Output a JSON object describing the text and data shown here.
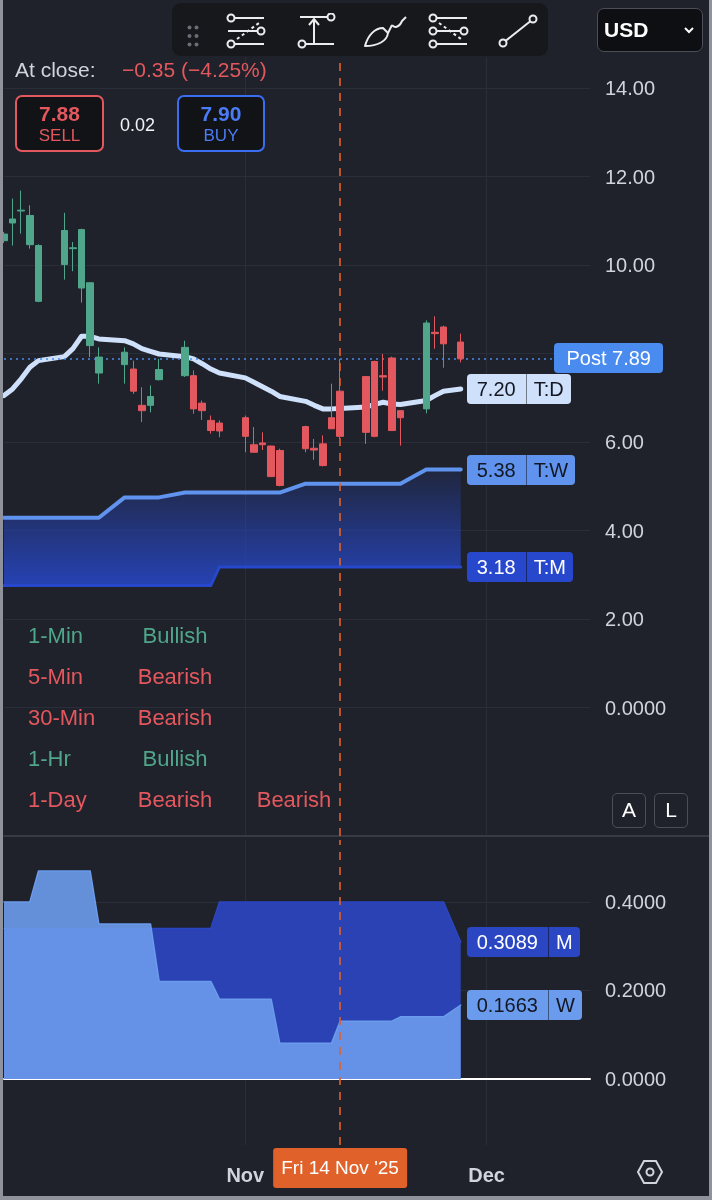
{
  "chart_data": [
    {
      "type": "candlestick",
      "x": [
        "2025-10-06",
        "2025-10-07",
        "2025-10-08",
        "2025-10-09",
        "2025-10-10",
        "2025-10-13",
        "2025-10-14",
        "2025-10-15",
        "2025-10-16",
        "2025-10-17",
        "2025-10-20",
        "2025-10-21",
        "2025-10-22",
        "2025-10-23",
        "2025-10-24",
        "2025-10-27",
        "2025-10-28",
        "2025-10-29",
        "2025-10-30",
        "2025-10-31",
        "2025-11-03",
        "2025-11-04",
        "2025-11-05",
        "2025-11-06",
        "2025-11-07",
        "2025-11-10",
        "2025-11-11",
        "2025-11-12",
        "2025-11-13",
        "2025-11-14",
        "2025-11-17",
        "2025-11-18",
        "2025-11-19",
        "2025-11-20",
        "2025-11-21",
        "2025-11-24",
        "2025-11-25",
        "2025-11-26",
        "2025-11-28"
      ],
      "xlim": [
        "2025-10-06",
        "2025-12-13"
      ],
      "xticks": [
        {
          "value": "2025-11-03",
          "label": null
        },
        {
          "value": "2025-12-01",
          "label": null
        }
      ],
      "tick_labels": "y",
      "ylim": [
        -2.9,
        14.7
      ],
      "yticks": [
        {
          "value": 0,
          "label": "0.0000"
        },
        {
          "value": 2,
          "label": "2.00"
        },
        {
          "value": 4,
          "label": "4.00"
        },
        {
          "value": 6,
          "label": "6.00"
        },
        {
          "value": 8,
          "label": null
        },
        {
          "value": 10,
          "label": "10.00"
        },
        {
          "value": 12,
          "label": "12.00"
        },
        {
          "value": 14,
          "label": "14.00"
        }
      ],
      "ohlc": [
        [
          10.55,
          10.75,
          10.5,
          10.7
        ],
        [
          10.95,
          11.5,
          10.44,
          11.04
        ],
        [
          11.22,
          11.68,
          10.71,
          11.24
        ],
        [
          10.46,
          11.35,
          10.37,
          11.12
        ],
        [
          9.18,
          10.47,
          9.16,
          10.44
        ],
        [
          10.01,
          11.18,
          9.67,
          10.78
        ],
        [
          10.37,
          10.52,
          9.86,
          10.39
        ],
        [
          9.48,
          10.82,
          9.15,
          10.8
        ],
        [
          8.18,
          9.6,
          7.92,
          9.6
        ],
        [
          7.56,
          8.14,
          7.32,
          7.92
        ],
        [
          7.75,
          8.14,
          7.32,
          8.03
        ],
        [
          7.65,
          7.84,
          7.09,
          7.15
        ],
        [
          6.83,
          7.24,
          6.45,
          6.71
        ],
        [
          6.83,
          7.28,
          6.67,
          7.03
        ],
        [
          7.41,
          7.88,
          7.39,
          7.64
        ],
        [
          7.5,
          8.29,
          7.47,
          8.14
        ],
        [
          7.5,
          7.62,
          6.64,
          6.75
        ],
        [
          6.88,
          6.94,
          6.5,
          6.71
        ],
        [
          6.49,
          6.6,
          6.19,
          6.26
        ],
        [
          6.43,
          6.49,
          6.11,
          6.25
        ],
        [
          6.55,
          6.6,
          5.77,
          6.13
        ],
        [
          5.94,
          6.34,
          5.77,
          5.77
        ],
        [
          5.98,
          6.22,
          5.82,
          5.94
        ],
        [
          5.91,
          5.92,
          5.21,
          5.22
        ],
        [
          5.81,
          5.85,
          5.0,
          5.02
        ],
        [
          6.35,
          6.37,
          5.77,
          5.85
        ],
        [
          5.86,
          6.07,
          5.6,
          5.82
        ],
        [
          5.96,
          6.15,
          5.45,
          5.47
        ],
        [
          6.55,
          7.32,
          6.3,
          6.3
        ],
        [
          7.15,
          7.88,
          6.07,
          6.13
        ],
        [
          7.48,
          7.48,
          5.96,
          6.22
        ],
        [
          7.82,
          7.84,
          6.11,
          6.13
        ],
        [
          7.5,
          7.99,
          7.16,
          7.47
        ],
        [
          7.9,
          7.93,
          6.25,
          6.26
        ],
        [
          6.71,
          6.71,
          5.92,
          6.55
        ],
        [
          6.75,
          8.75,
          6.65,
          8.69
        ],
        [
          8.48,
          8.84,
          8.11,
          8.45
        ],
        [
          8.6,
          8.63,
          7.68,
          8.22
        ],
        [
          8.26,
          8.45,
          7.8,
          7.88
        ]
      ],
      "colors": [
        "#4fa68a",
        "#4fa68a",
        "#4fa68a",
        "#4fa68a",
        "#4fa68a",
        "#4fa68a",
        "#4fa68a",
        "#4fa68a",
        "#4fa68a",
        "#4fa68a",
        "#4fa68a",
        "#e3575e",
        "#e3575e",
        "#4fa68a",
        "#4fa68a",
        "#4fa68a",
        "#e3575e",
        "#e3575e",
        "#e3575e",
        "#e3575e",
        "#e3575e",
        "#e3575e",
        "#e3575e",
        "#e3575e",
        "#e3575e",
        "#e3575e",
        "#e3575e",
        "#e3575e",
        "#e3575e",
        "#e3575e",
        "#e3575e",
        "#e3575e",
        "#e3575e",
        "#e3575e",
        "#e3575e",
        "#4fa68a",
        "#e3575e",
        "#e3575e",
        "#e3575e"
      ],
      "series": [
        {
          "name": "T:D",
          "type": "line",
          "color": "#cfe0fb",
          "values": [
            7.05,
            7.2,
            7.43,
            7.69,
            7.84,
            7.93,
            8.11,
            8.39,
            8.39,
            8.33,
            8.29,
            8.22,
            8.11,
            8.05,
            7.99,
            7.93,
            7.88,
            7.77,
            7.65,
            7.56,
            7.45,
            7.35,
            7.25,
            7.15,
            7.03,
            6.92,
            6.83,
            6.75,
            6.75,
            6.76,
            6.79,
            6.85,
            6.9,
            6.86,
            6.85,
            6.94,
            7.05,
            7.15,
            7.2
          ],
          "value_labels": [
            null,
            null,
            null,
            null,
            null,
            null,
            null,
            null,
            null,
            null,
            null,
            null,
            null,
            null,
            null,
            null,
            null,
            null,
            null,
            null,
            null,
            null,
            null,
            null,
            null,
            null,
            null,
            null,
            null,
            null,
            null,
            null,
            null,
            null,
            null,
            null,
            null,
            null,
            "7.20"
          ]
        },
        {
          "name": "T:W",
          "type": "line",
          "color": "#5f93ee",
          "values": [
            4.29,
            4.29,
            4.29,
            4.29,
            4.29,
            4.29,
            4.29,
            4.29,
            4.29,
            4.29,
            4.75,
            4.75,
            4.75,
            4.75,
            4.75,
            4.86,
            4.86,
            4.86,
            4.86,
            4.86,
            4.86,
            4.86,
            4.86,
            4.86,
            4.86,
            5.06,
            5.06,
            5.06,
            5.06,
            5.06,
            5.06,
            5.06,
            5.06,
            5.06,
            5.06,
            5.38,
            5.38,
            5.38,
            5.38
          ],
          "value_labels": [
            null,
            null,
            null,
            null,
            null,
            null,
            null,
            null,
            null,
            null,
            null,
            null,
            null,
            null,
            null,
            null,
            null,
            null,
            null,
            null,
            null,
            null,
            null,
            null,
            null,
            null,
            null,
            null,
            null,
            null,
            null,
            null,
            null,
            null,
            null,
            null,
            null,
            null,
            "5.38"
          ]
        },
        {
          "name": "T:M",
          "type": "line",
          "color": "#2748cc",
          "values": [
            2.76,
            2.76,
            2.76,
            2.76,
            2.76,
            2.76,
            2.76,
            2.76,
            2.76,
            2.76,
            2.76,
            2.76,
            2.76,
            2.76,
            2.76,
            2.76,
            2.76,
            2.76,
            2.76,
            3.18,
            3.18,
            3.18,
            3.18,
            3.18,
            3.18,
            3.18,
            3.18,
            3.18,
            3.18,
            3.18,
            3.18,
            3.18,
            3.18,
            3.18,
            3.18,
            3.18,
            3.18,
            3.18,
            3.18
          ],
          "lower": [
            2.76,
            2.76,
            2.76,
            2.76,
            2.76,
            2.76,
            2.76,
            2.76,
            2.76,
            2.76,
            2.76,
            2.76,
            2.76,
            2.76,
            2.76,
            2.76,
            2.76,
            2.76,
            2.76,
            3.18,
            3.18,
            3.18,
            3.18,
            3.18,
            3.18,
            3.18,
            3.18,
            3.18,
            3.18,
            3.18,
            3.18,
            3.18,
            3.18,
            3.18,
            3.18,
            3.18,
            3.18,
            3.18,
            3.18
          ],
          "upper": [
            4.29,
            4.29,
            4.29,
            4.29,
            4.29,
            4.29,
            4.29,
            4.29,
            4.29,
            4.29,
            4.75,
            4.75,
            4.75,
            4.75,
            4.75,
            4.86,
            4.86,
            4.86,
            4.86,
            4.86,
            4.86,
            4.86,
            4.86,
            4.86,
            4.86,
            5.06,
            5.06,
            5.06,
            5.06,
            5.06,
            5.06,
            5.06,
            5.06,
            5.06,
            5.06,
            5.38,
            5.38,
            5.38,
            5.38
          ],
          "value_labels": [
            null,
            null,
            null,
            null,
            null,
            null,
            null,
            null,
            null,
            null,
            null,
            null,
            null,
            null,
            null,
            null,
            null,
            null,
            null,
            null,
            null,
            null,
            null,
            null,
            null,
            null,
            null,
            null,
            null,
            null,
            null,
            null,
            null,
            null,
            null,
            null,
            null,
            null,
            "3.18"
          ]
        }
      ],
      "ref_lines": [
        {
          "axis": "y",
          "value": 7.89,
          "label": "Post 7.89",
          "color": "#4a8bf0",
          "line_style": "dotted"
        },
        {
          "axis": "x",
          "value": "2025-11-14",
          "color": "#e0622a",
          "line_style": "dashed"
        }
      ],
      "grid": true,
      "legend": "right",
      "marker": "none",
      "annotations": [
        "At close:",
        "−0.35 (−4.25%)",
        "7.88",
        "SELL",
        "0.02",
        "7.90",
        "BUY",
        "USD",
        "1-Min",
        "Bullish",
        "5-Min",
        "Bearish",
        "30-Min",
        "Bearish",
        "1-Hr",
        "Bullish",
        "1-Day",
        "Bearish",
        "Bearish",
        "A",
        "L"
      ]
    },
    {
      "type": "area",
      "x": [
        "2025-10-06",
        "2025-10-07",
        "2025-10-08",
        "2025-10-09",
        "2025-10-10",
        "2025-10-13",
        "2025-10-14",
        "2025-10-15",
        "2025-10-16",
        "2025-10-17",
        "2025-10-20",
        "2025-10-21",
        "2025-10-22",
        "2025-10-23",
        "2025-10-24",
        "2025-10-27",
        "2025-10-28",
        "2025-10-29",
        "2025-10-30",
        "2025-10-31",
        "2025-11-03",
        "2025-11-04",
        "2025-11-05",
        "2025-11-06",
        "2025-11-07",
        "2025-11-10",
        "2025-11-11",
        "2025-11-12",
        "2025-11-13",
        "2025-11-14",
        "2025-11-17",
        "2025-11-18",
        "2025-11-19",
        "2025-11-20",
        "2025-11-21",
        "2025-11-24",
        "2025-11-25",
        "2025-11-26",
        "2025-11-28"
      ],
      "xlim": [
        "2025-10-06",
        "2025-12-13"
      ],
      "xticks": [
        {
          "value": "2025-11-03",
          "label": "Nov"
        },
        {
          "value": "2025-12-01",
          "label": "Dec"
        }
      ],
      "ylim": [
        -0.15,
        0.54
      ],
      "yticks": [
        {
          "value": 0,
          "label": "0.0000"
        },
        {
          "value": 0.2,
          "label": "0.2000"
        },
        {
          "value": 0.4,
          "label": "0.4000"
        }
      ],
      "series": [
        {
          "name": "M",
          "color": "#2b46c2",
          "values": [
            0.34,
            0.34,
            0.34,
            0.34,
            0.34,
            0.34,
            0.34,
            0.34,
            0.34,
            0.34,
            0.34,
            0.34,
            0.34,
            0.34,
            0.34,
            0.34,
            0.34,
            0.34,
            0.34,
            0.4,
            0.4,
            0.4,
            0.4,
            0.4,
            0.4,
            0.4,
            0.4,
            0.4,
            0.4,
            0.4,
            0.4,
            0.4,
            0.4,
            0.4,
            0.4,
            0.4,
            0.4,
            0.4,
            0.3089
          ],
          "value_labels": [
            null,
            null,
            null,
            null,
            null,
            null,
            null,
            null,
            null,
            null,
            null,
            null,
            null,
            null,
            null,
            null,
            null,
            null,
            null,
            null,
            null,
            null,
            null,
            null,
            null,
            null,
            null,
            null,
            null,
            null,
            null,
            null,
            null,
            null,
            null,
            null,
            null,
            null,
            "0.3089"
          ]
        },
        {
          "name": "W",
          "color": "#6b9bec",
          "values": [
            0.4,
            0.4,
            0.4,
            0.4,
            0.47,
            0.47,
            0.47,
            0.47,
            0.47,
            0.35,
            0.35,
            0.35,
            0.35,
            0.35,
            0.22,
            0.22,
            0.22,
            0.22,
            0.22,
            0.18,
            0.18,
            0.18,
            0.18,
            0.18,
            0.08,
            0.08,
            0.08,
            0.08,
            0.08,
            0.13,
            0.13,
            0.13,
            0.13,
            0.13,
            0.14,
            0.14,
            0.14,
            0.14,
            0.1663
          ],
          "value_labels": [
            null,
            null,
            null,
            null,
            null,
            null,
            null,
            null,
            null,
            null,
            null,
            null,
            null,
            null,
            null,
            null,
            null,
            null,
            null,
            null,
            null,
            null,
            null,
            null,
            null,
            null,
            null,
            null,
            null,
            null,
            null,
            null,
            null,
            null,
            null,
            null,
            null,
            null,
            "0.1663"
          ]
        }
      ],
      "ref_lines": [
        {
          "axis": "x",
          "value": "2025-11-14",
          "label": "Fri 14 Nov '25",
          "color": "#e0622a",
          "line_style": "dashed"
        }
      ],
      "grid": true,
      "legend": "right",
      "marker": "none"
    }
  ]
}
